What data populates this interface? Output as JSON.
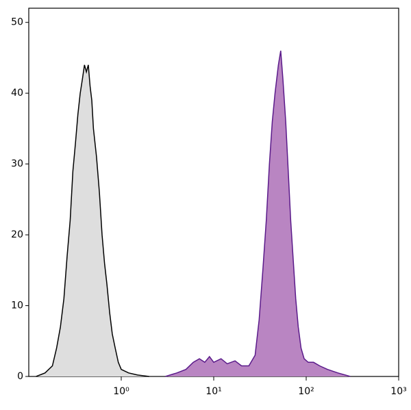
{
  "chart_data": {
    "type": "histogram-overlay",
    "xscale": "log",
    "xlim": [
      0.1,
      1000
    ],
    "ylim": [
      0,
      52
    ],
    "xticks": [
      {
        "value": 1,
        "label": "10⁰"
      },
      {
        "value": 10,
        "label": "10¹"
      },
      {
        "value": 100,
        "label": "10²"
      },
      {
        "value": 1000,
        "label": "10³"
      }
    ],
    "yticks": [
      0,
      10,
      20,
      30,
      40,
      50
    ],
    "series": [
      {
        "color": "#000000",
        "fill": "#dedede",
        "x": [
          0.12,
          0.15,
          0.18,
          0.2,
          0.22,
          0.24,
          0.26,
          0.28,
          0.3,
          0.32,
          0.34,
          0.36,
          0.38,
          0.4,
          0.42,
          0.44,
          0.46,
          0.48,
          0.5,
          0.54,
          0.58,
          0.62,
          0.66,
          0.7,
          0.75,
          0.8,
          0.86,
          0.93,
          1.0,
          1.2,
          1.5,
          2
        ],
        "values": [
          0,
          0.5,
          1.5,
          4,
          7,
          11,
          17,
          22,
          29,
          33,
          37,
          40,
          42,
          44,
          43,
          44,
          41,
          39,
          35,
          31,
          26,
          20,
          16,
          13,
          9,
          6,
          4,
          2,
          1,
          0.5,
          0.2,
          0
        ]
      },
      {
        "color": "#5a1a8a",
        "fill": "#b985c2",
        "x": [
          3,
          4,
          5,
          6,
          7,
          8,
          9,
          10,
          12,
          14,
          17,
          20,
          24,
          28,
          31,
          34,
          37,
          40,
          43,
          46,
          50,
          53,
          56,
          60,
          64,
          68,
          72,
          77,
          82,
          88,
          95,
          105,
          120,
          140,
          170,
          220,
          300
        ],
        "values": [
          0,
          0.5,
          1,
          2,
          2.5,
          2,
          2.8,
          2,
          2.5,
          1.8,
          2.2,
          1.5,
          1.5,
          3,
          8,
          15,
          22,
          30,
          36,
          40,
          44,
          46,
          42,
          36,
          29,
          22,
          17,
          11,
          7,
          4,
          2.5,
          2,
          2,
          1.5,
          1,
          0.5,
          0
        ]
      }
    ]
  }
}
